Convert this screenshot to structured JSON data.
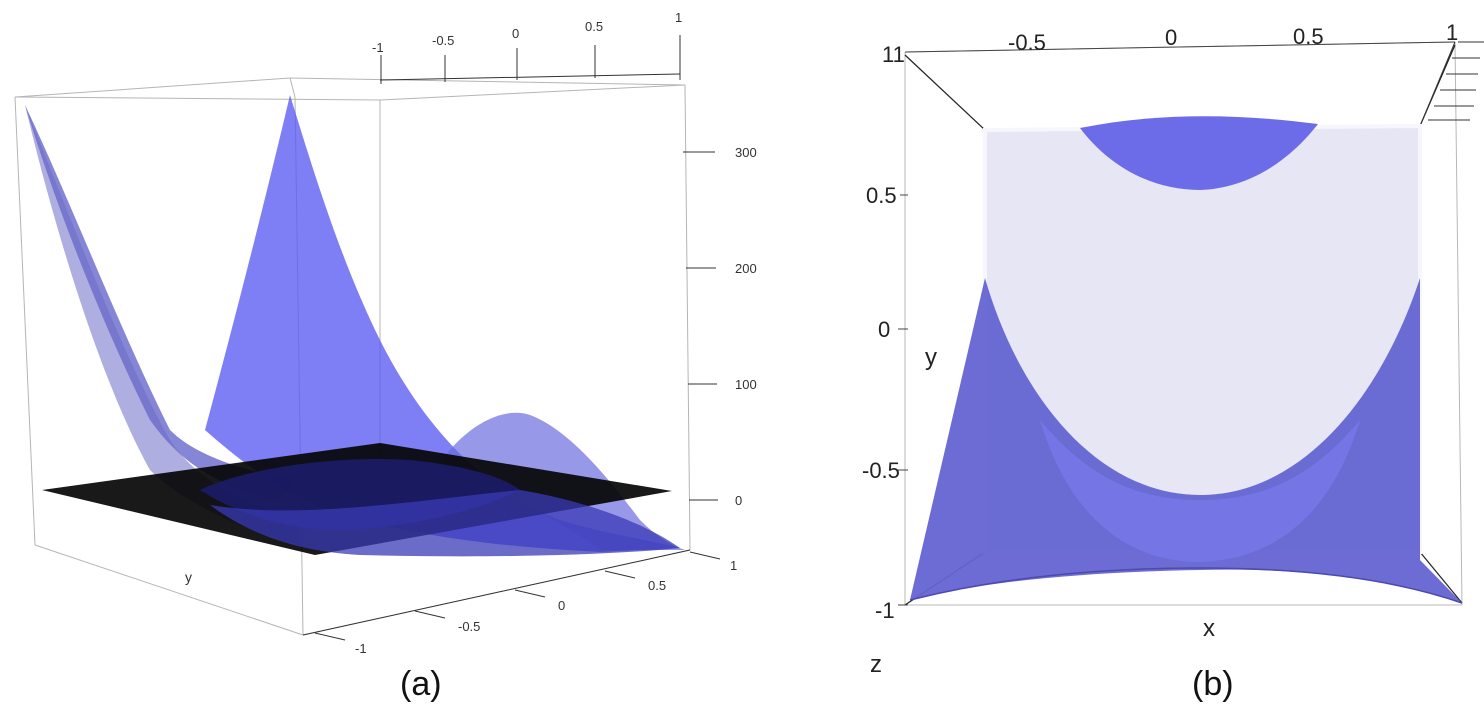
{
  "panels": [
    {
      "label": "(a)",
      "type": "surface3d",
      "view": "perspective",
      "z_ticks": [
        "0",
        "100",
        "200",
        "300"
      ],
      "x_ticks": [
        "-1",
        "-0.5",
        "0",
        "0.5",
        "1"
      ],
      "y_ticks": [
        "-1",
        "-0.5",
        "0",
        "0.5",
        "1"
      ],
      "y_axis_label": "y",
      "surface_color": "#5a5ae6",
      "plane_color": "#000000",
      "plane_z": 0,
      "zlim": [
        0,
        330
      ]
    },
    {
      "label": "(b)",
      "type": "surface3d",
      "view": "top-down",
      "x_ticks": [
        "-0.5",
        "0",
        "0.5",
        "1"
      ],
      "x_corner_tick": "11",
      "y_ticks": [
        "1",
        "0.5",
        "0",
        "-0.5",
        "-1"
      ],
      "x_axis_label": "x",
      "y_axis_label": "y",
      "z_axis_label": "z",
      "surface_color": "#5a5ae6",
      "inner_color": "#e8e8f6"
    }
  ],
  "chart_data": [
    {
      "type": "surface3d",
      "panel": "(a)",
      "x_ticks": [
        -1,
        -0.5,
        0,
        0.5,
        1
      ],
      "y_ticks": [
        -1,
        -0.5,
        0,
        0.5,
        1
      ],
      "z_ticks": [
        0,
        100,
        200,
        300
      ],
      "xlim": [
        -1,
        1
      ],
      "ylim": [
        -1,
        1
      ],
      "zlim": [
        0,
        330
      ],
      "ylabel": "y",
      "series": [
        {
          "kind": "surface",
          "color": "#5a5ae6",
          "corner_z": [
            {
              "x": -1,
              "y": -1,
              "z": 325
            },
            {
              "x": 1,
              "y": -1,
              "z": 325
            },
            {
              "x": -1,
              "y": 1,
              "z": 0
            },
            {
              "x": 1,
              "y": 1,
              "z": 0
            }
          ],
          "local_max": {
            "x": 0.5,
            "y": 0.5,
            "z": 70
          }
        },
        {
          "kind": "plane",
          "color": "#000000",
          "z": 0
        }
      ]
    },
    {
      "type": "surface3d",
      "panel": "(b)",
      "view": "top-down",
      "x_ticks": [
        -0.5,
        0,
        0.5,
        1
      ],
      "y_ticks": [
        -1,
        -0.5,
        0,
        0.5,
        1
      ],
      "xlim": [
        -1,
        1
      ],
      "ylim": [
        -1,
        1
      ],
      "xlabel": "x",
      "ylabel": "y",
      "zlabel": "z",
      "regions": [
        {
          "name": "top-lens",
          "x_range": [
            -0.45,
            0.45
          ],
          "y_vertex": 0.6,
          "y_edge": 0.78
        },
        {
          "name": "lower-band",
          "y_vertex": -0.62,
          "x_at_y0": [
            -1,
            1
          ]
        }
      ]
    }
  ]
}
